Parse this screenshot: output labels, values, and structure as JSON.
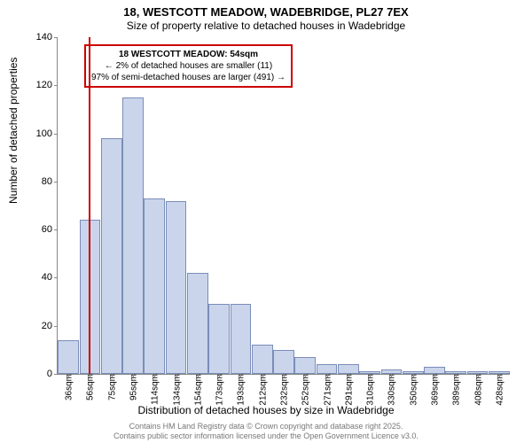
{
  "header": {
    "title": "18, WESTCOTT MEADOW, WADEBRIDGE, PL27 7EX",
    "subtitle": "Size of property relative to detached houses in Wadebridge"
  },
  "axes": {
    "ylabel": "Number of detached properties",
    "xlabel": "Distribution of detached houses by size in Wadebridge",
    "ylim": [
      0,
      140
    ],
    "yticks": [
      0,
      20,
      40,
      60,
      80,
      100,
      120,
      140
    ],
    "xtick_labels": [
      "36sqm",
      "56sqm",
      "75sqm",
      "95sqm",
      "114sqm",
      "134sqm",
      "154sqm",
      "173sqm",
      "193sqm",
      "212sqm",
      "232sqm",
      "252sqm",
      "271sqm",
      "291sqm",
      "310sqm",
      "330sqm",
      "350sqm",
      "369sqm",
      "389sqm",
      "408sqm",
      "428sqm"
    ]
  },
  "chart": {
    "type": "bar",
    "bar_fill": "#cad5ec",
    "bar_stroke": "#7a8db8",
    "values": [
      14,
      64,
      98,
      115,
      73,
      72,
      42,
      29,
      29,
      12,
      10,
      7,
      4,
      4,
      1,
      2,
      1,
      3,
      1,
      1,
      1
    ],
    "background": "#ffffff"
  },
  "marker": {
    "color": "#cc0000",
    "position_index": 0.95
  },
  "annotation": {
    "border_color": "#cc0000",
    "line1": "18 WESTCOTT MEADOW: 54sqm",
    "line2": "← 2% of detached houses are smaller (11)",
    "line3": "97% of semi-detached houses are larger (491) →"
  },
  "footer": {
    "line1": "Contains HM Land Registry data © Crown copyright and database right 2025.",
    "line2": "Contains public sector information licensed under the Open Government Licence v3.0."
  }
}
